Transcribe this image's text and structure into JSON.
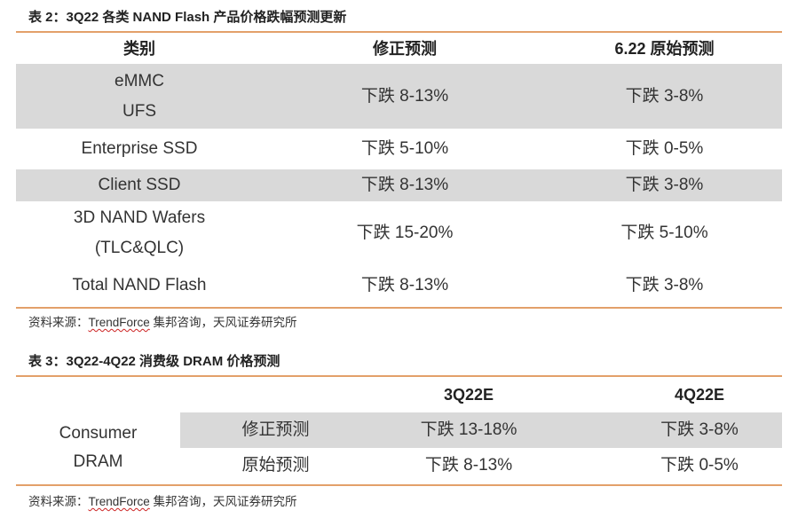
{
  "table2": {
    "caption": "表 2：3Q22 各类 NAND Flash 产品价格跌幅预测更新",
    "headers": [
      "类别",
      "修正预测",
      "6.22 原始预测"
    ],
    "rows": [
      {
        "category_line1": "eMMC",
        "category_line2": "UFS",
        "revised": "下跌 8-13%",
        "original": "下跌 3-8%"
      },
      {
        "category": "Enterprise SSD",
        "revised": "下跌 5-10%",
        "original": "下跌 0-5%"
      },
      {
        "category": "Client SSD",
        "revised": "下跌 8-13%",
        "original": "下跌 3-8%"
      },
      {
        "category_line1": "3D NAND Wafers",
        "category_line2": "(TLC&QLC)",
        "revised": "下跌 15-20%",
        "original": "下跌 5-10%"
      },
      {
        "category": "Total NAND Flash",
        "revised": "下跌 8-13%",
        "original": "下跌 3-8%"
      }
    ],
    "source_prefix": "资料来源：",
    "source_link": "TrendForce",
    "source_suffix": " 集邦咨询，天风证券研究所"
  },
  "table3": {
    "caption": "表 3：3Q22-4Q22 消费级 DRAM 价格预测",
    "headers": [
      "3Q22E",
      "4Q22E"
    ],
    "category_line1": "Consumer",
    "category_line2": "DRAM",
    "rows": [
      {
        "label": "修正预测",
        "q3": "下跌 13-18%",
        "q4": "下跌 3-8%"
      },
      {
        "label": "原始预测",
        "q3": "下跌 8-13%",
        "q4": "下跌 0-5%"
      }
    ],
    "source_prefix": "资料来源：",
    "source_link": "TrendForce",
    "source_suffix": " 集邦咨询，天风证券研究所"
  },
  "colors": {
    "accent_line": "#e3a06a",
    "row_shade": "#d9d9d9"
  }
}
